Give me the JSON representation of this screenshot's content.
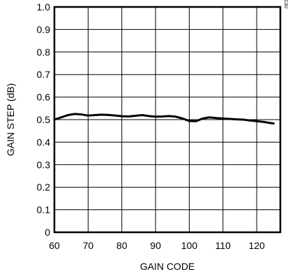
{
  "figure_id": "MAX3514 toc30",
  "chart_data": {
    "type": "line",
    "title": "",
    "xlabel": "GAIN CODE",
    "ylabel": "GAIN STEP (dB)",
    "xlim": [
      60,
      127
    ],
    "ylim": [
      0,
      1.0
    ],
    "x_ticks": [
      60,
      70,
      80,
      90,
      100,
      110,
      120
    ],
    "x_tick_labels": [
      "60",
      "70",
      "80",
      "90",
      "100",
      "110",
      "120"
    ],
    "y_ticks": [
      0,
      0.1,
      0.2,
      0.3,
      0.4,
      0.5,
      0.6,
      0.7,
      0.8,
      0.9,
      1.0
    ],
    "y_tick_labels": [
      "0",
      "0.1",
      "0.2",
      "0.3",
      "0.4",
      "0.5",
      "0.6",
      "0.7",
      "0.8",
      "0.9",
      "1.0"
    ],
    "grid": true,
    "legend": "none",
    "line_color": "#000000",
    "series": [
      {
        "x": [
          60,
          62,
          64,
          66,
          68,
          70,
          72,
          74,
          76,
          78,
          80,
          82,
          84,
          86,
          88,
          90,
          92,
          94,
          96,
          98,
          100,
          102,
          104,
          106,
          108,
          110,
          112,
          114,
          116,
          118,
          120,
          122,
          124,
          125
        ],
        "y": [
          0.5,
          0.51,
          0.52,
          0.525,
          0.523,
          0.518,
          0.52,
          0.522,
          0.521,
          0.518,
          0.515,
          0.514,
          0.517,
          0.52,
          0.516,
          0.513,
          0.514,
          0.516,
          0.513,
          0.505,
          0.494,
          0.493,
          0.505,
          0.51,
          0.507,
          0.505,
          0.503,
          0.501,
          0.5,
          0.496,
          0.493,
          0.49,
          0.485,
          0.483
        ]
      }
    ]
  }
}
